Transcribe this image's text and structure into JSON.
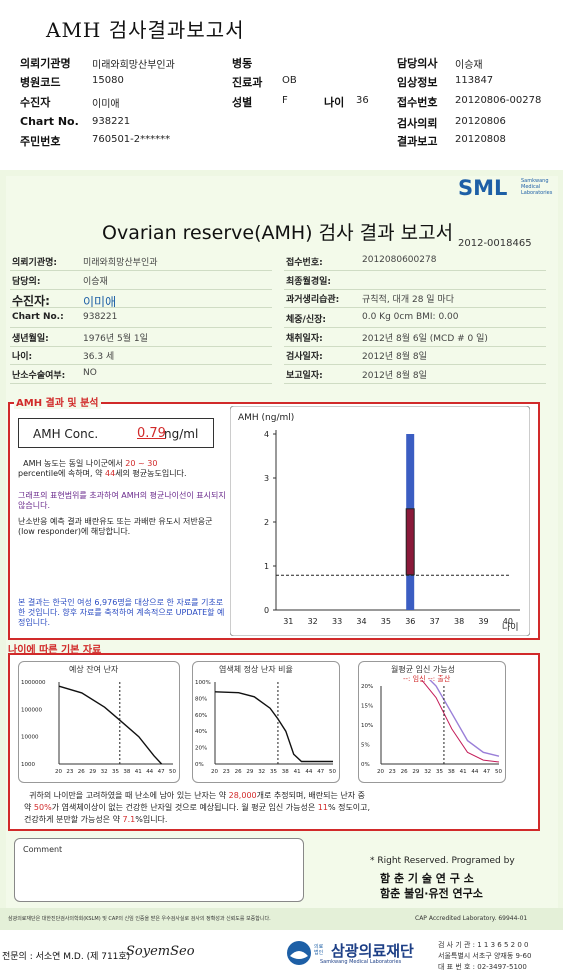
{
  "header": {
    "title": "AMH 검사결과보고서",
    "rows": [
      [
        {
          "l": "의뢰기관명",
          "v": "미래와희망산부인과"
        },
        {
          "l": "병동",
          "v": ""
        },
        {
          "l": "담당의사",
          "v": "이승재"
        }
      ],
      [
        {
          "l": "병원코드",
          "v": "15080"
        },
        {
          "l": "진료과",
          "v": "OB"
        },
        {
          "l": "임상정보",
          "v": "113847"
        }
      ],
      [
        {
          "l": "수진자",
          "v": "이미애"
        },
        {
          "l": "성별",
          "v": "F"
        },
        {
          "l": "접수번호",
          "v": "20120806-00278"
        }
      ],
      [
        {
          "l": "Chart No.",
          "v": "938221"
        },
        {
          "l": "",
          "v": ""
        },
        {
          "l": "검사의뢰",
          "v": "20120806"
        }
      ],
      [
        {
          "l": "주민번호",
          "v": "760501-2******"
        },
        {
          "l": "",
          "v": ""
        },
        {
          "l": "결과보고",
          "v": "20120808"
        }
      ]
    ],
    "age_label": "나이",
    "age_value": "36"
  },
  "logo": {
    "name": "SML",
    "sub1": "Samkwang",
    "sub2": "Medical",
    "sub3": "Laboratories"
  },
  "report": {
    "title": "Ovarian reserve(AMH) 검사 결과 보고서",
    "number": "2012-0018465",
    "left": [
      {
        "l": "의뢰기관명:",
        "v": "미래와희망산부인과"
      },
      {
        "l": "담당의:",
        "v": "이승재"
      },
      {
        "l": "수진자:",
        "v": "이미애"
      },
      {
        "l": "Chart No.:",
        "v": "938221"
      },
      {
        "l": "생년월일:",
        "v": "1976년 5월 1일"
      },
      {
        "l": "나이:",
        "v": "36.3 세"
      },
      {
        "l": "난소수술여부:",
        "v": "NO"
      }
    ],
    "right": [
      {
        "l": "접수번호:",
        "v": "2012080600278"
      },
      {
        "l": "최종월경일:",
        "v": ""
      },
      {
        "l": "과거생리습관:",
        "v": "규칙적, 대개   28 일 마다"
      },
      {
        "l": "체중/신장:",
        "v": "0.0 Kg       0cm   BMI:   0.00"
      },
      {
        "l": "채취일자:",
        "v": "2012년 8월 6일     (MCD #  0 일)"
      },
      {
        "l": "검사일자:",
        "v": "2012년 8월 8일"
      },
      {
        "l": "보고일자:",
        "v": "2012년 8월 8일"
      }
    ]
  },
  "amh": {
    "section_title": "AMH 결과 및 분석",
    "conc_label": "AMH Conc.",
    "conc_value": "0.79",
    "conc_unit": "ng/ml",
    "p1a": "AMH 농도는 동일 나이군에서",
    "p1b": "20 ~ 30",
    "p1c": "percentile에 속하며, 약",
    "p1d": "44",
    "p1e": "세의 평균농도입니다.",
    "p2": "그래프의 표현범위를 초과하여 AMH의 평균나이선이 표시되지 않습니다.",
    "p3": "난소반응 예측 결과 배란유도 또는 과배란 유도시 저반응군 (low responder)에 해당합니다.",
    "p4": "본 결과는 한국인 여성 6,976명을 대상으로 한 자료를 기초로 한 것입니다. 향후 자료를 축적하여 계속적으로 UPDATE할 예정입니다."
  },
  "chart_data": [
    {
      "type": "bar",
      "title": "",
      "ylabel": "AMH (ng/ml)",
      "xlabel": "나이",
      "x_ticks": [
        "31",
        "32",
        "33",
        "34",
        "35",
        "36",
        "37",
        "38",
        "39",
        "40"
      ],
      "y_ticks": [
        "0",
        "1",
        "2",
        "3",
        "4"
      ],
      "ylim": [
        0,
        4
      ],
      "range_bar": {
        "x": 36,
        "low": 0,
        "high": 4
      },
      "box": {
        "x": 36,
        "low": 0.8,
        "high": 2.3
      },
      "patient_value": 0.79,
      "grid": false
    },
    {
      "type": "line",
      "title": "예상 잔여 난자",
      "x_ticks": [
        "20",
        "23",
        "26",
        "29",
        "32",
        "35",
        "38",
        "41",
        "44",
        "47",
        "50"
      ],
      "y_ticks": [
        "1000000",
        "100000",
        "10000",
        "1000"
      ],
      "yscale": "log",
      "x": [
        20,
        26,
        32,
        36,
        41,
        45,
        47
      ],
      "y": [
        700000,
        400000,
        120000,
        40000,
        10000,
        2000,
        1000
      ],
      "marker_x": 36
    },
    {
      "type": "line",
      "title": "염색체 정상 난자 비율",
      "x_ticks": [
        "20",
        "23",
        "26",
        "29",
        "32",
        "35",
        "38",
        "41",
        "44",
        "47",
        "50"
      ],
      "y_ticks": [
        "100%",
        "80%",
        "60%",
        "40%",
        "20%",
        "0%"
      ],
      "x": [
        20,
        26,
        30,
        34,
        36,
        38,
        40,
        42,
        50
      ],
      "y": [
        88,
        87,
        82,
        68,
        55,
        40,
        12,
        3,
        3
      ],
      "marker_x": 36
    },
    {
      "type": "line",
      "title": "월평균 임신 가능성",
      "legend": [
        "임신",
        "출산"
      ],
      "x_ticks": [
        "20",
        "23",
        "26",
        "29",
        "32",
        "35",
        "38",
        "41",
        "44",
        "47",
        "50"
      ],
      "y_ticks": [
        "20%",
        "15%",
        "10%",
        "5%",
        "0%"
      ],
      "series": [
        {
          "name": "임신",
          "x": [
            20,
            30,
            34,
            38,
            42,
            46,
            50
          ],
          "y": [
            24,
            24,
            20,
            13,
            6,
            3,
            2
          ]
        },
        {
          "name": "출산",
          "x": [
            20,
            30,
            34,
            38,
            42,
            46,
            50
          ],
          "y": [
            23,
            22,
            17,
            9,
            3,
            1,
            0.5
          ]
        }
      ],
      "marker_x": 36
    }
  ],
  "age": {
    "section_title": "나이에 따른 기본 자료",
    "t1": "예상 잔여 난자",
    "t2": "염색체 정상 난자 비율",
    "t3": "월평균 임신 가능성",
    "legend": "--: 임신 --: 출산",
    "summary1": "귀하의 나이만을 고려하였을 때 난소에 남아 있는 난자는 약",
    "eggs": "28,000",
    "summary2": "개로 추정되며, 배란되는 난자 중",
    "summary3": "약",
    "pct1": "50%",
    "summary4": "가 염색체이상이 없는 건강한 난자일 것으로 예상됩니다. 월 평균 임신 가능성은",
    "pct2": "11",
    "summary5": "% 정도이고,",
    "summary6": "건강하게 분만할 가능성은 약",
    "pct3": "7.1",
    "summary7": "%입니다."
  },
  "comment": {
    "label": "Comment"
  },
  "rights": {
    "l1": "* Right Reserved. Programed by",
    "l2": "함 춘 기 술 연 구 소",
    "l3": "함춘 불임·유전 연구소"
  },
  "footer": {
    "note": "삼광의료재단은 대한진단검사의학회(KSLM) 및 CAP의 신임 인증을 받은 우수검사실로 검사의 정확성과 신뢰도를 보증합니다.",
    "cap": "CAP Accredited Laboratory. 69944-01",
    "doctor": "전문의 : 서소연 M.D. (제 711호)",
    "sign": "SoyemSeo",
    "org_badge": "의료법인",
    "org": "삼광의료재단",
    "org_en": "Samkwang Medical Laboratories",
    "reg": "검 사 기 관 : 1 1 3 6 5 2 0 0",
    "addr": "서울특별시 서초구 양재동 9-60",
    "tel": "대 표 번 호 : 02-3497-5100"
  }
}
